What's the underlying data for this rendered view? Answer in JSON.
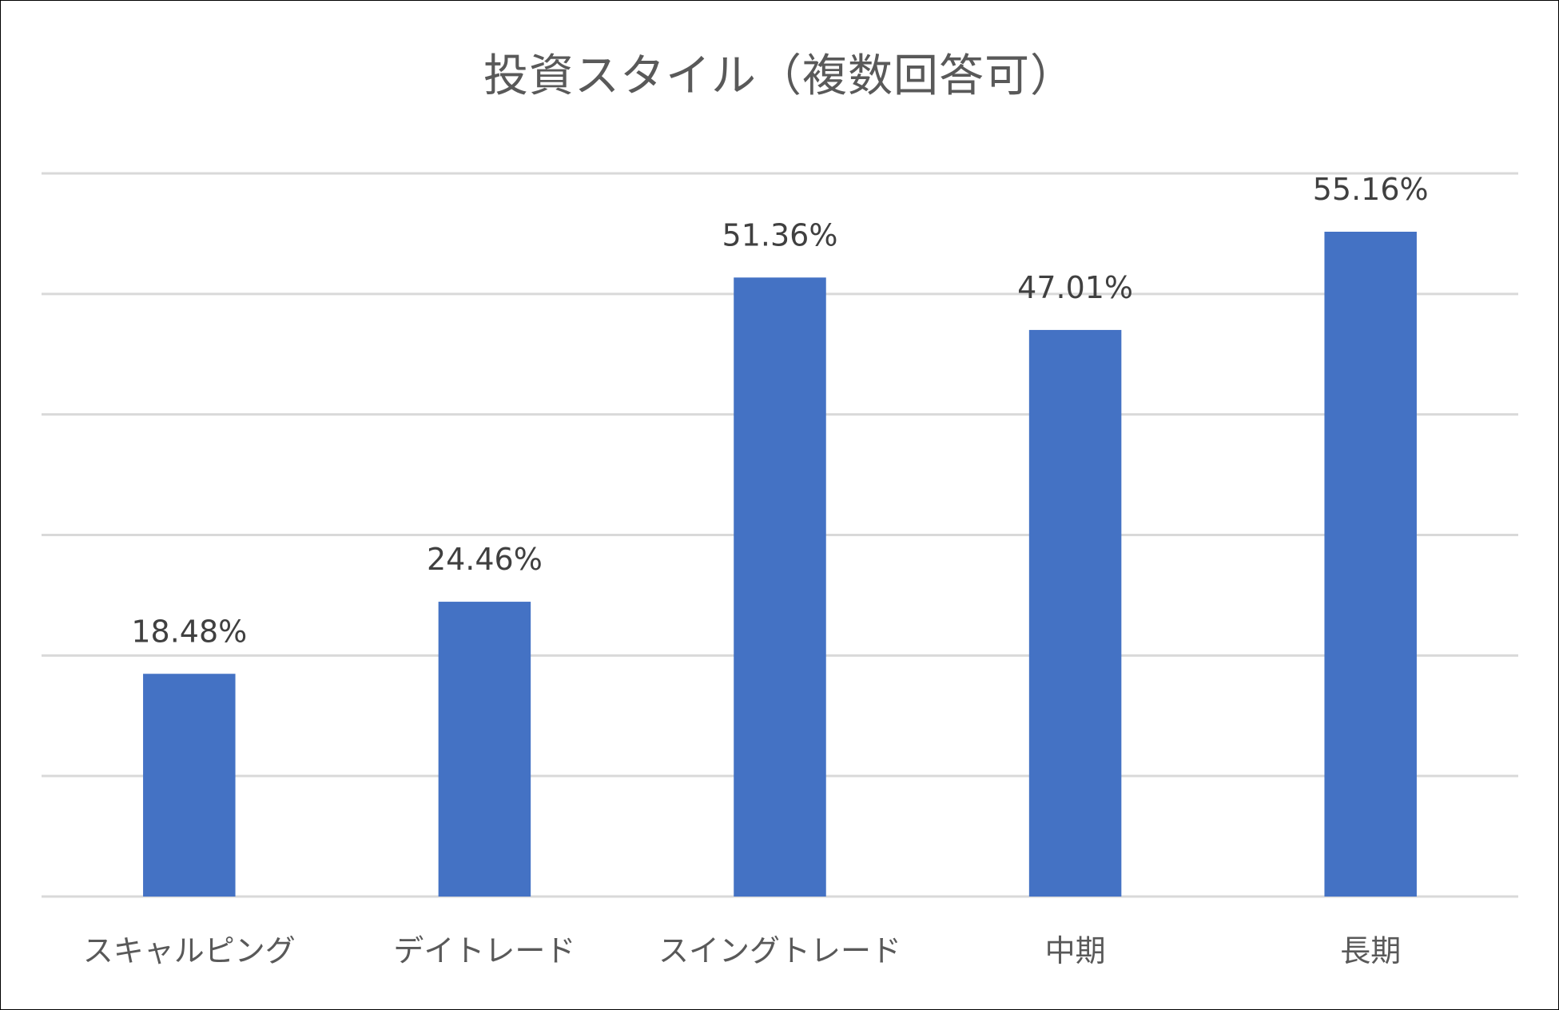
{
  "chart_data": {
    "type": "bar",
    "title": "投資スタイル（複数回答可）",
    "categories": [
      "スキャルピング",
      "デイトレード",
      "スイングトレード",
      "中期",
      "長期"
    ],
    "values": [
      18.48,
      24.46,
      51.36,
      47.01,
      55.16
    ],
    "data_labels": [
      "18.48%",
      "24.46%",
      "51.36%",
      "47.01%",
      "55.16%"
    ],
    "unit": "%",
    "ylim": [
      0,
      60
    ],
    "y_gridline_step": 10,
    "y_tick_labels_shown": false,
    "grid": true,
    "legend": "none",
    "bar_color": "#4472c4",
    "gridline_color": "#d9d9d9",
    "title_color": "#595959"
  }
}
